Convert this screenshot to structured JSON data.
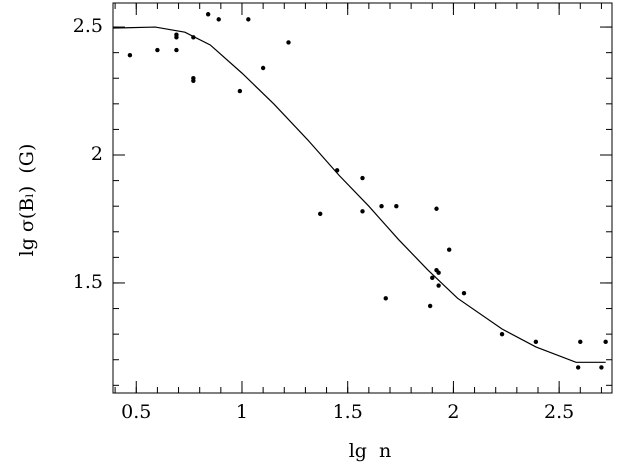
{
  "chart_data": {
    "type": "scatter",
    "x_label": "lg  n",
    "y_label": "lg σ(Bₗ)  (G)",
    "xlim": [
      0.39,
      2.75
    ],
    "ylim": [
      1.07,
      2.594
    ],
    "xticks": [
      0.5,
      1,
      1.5,
      2,
      2.5
    ],
    "yticks": [
      1.5,
      2,
      2.5
    ],
    "minor_divisions": 5,
    "color": "#000",
    "x": [
      0.47,
      0.6,
      0.69,
      0.69,
      0.69,
      0.77,
      0.77,
      0.77,
      0.84,
      0.89,
      0.99,
      1.03,
      1.1,
      1.22,
      1.37,
      1.45,
      1.57,
      1.57,
      1.66,
      1.68,
      1.73,
      1.89,
      1.9,
      1.92,
      1.92,
      1.93,
      1.93,
      1.98,
      2.05,
      2.23,
      2.39,
      2.59,
      2.6,
      2.7,
      2.72
    ],
    "y": [
      2.39,
      2.41,
      2.46,
      2.47,
      2.41,
      2.46,
      2.3,
      2.29,
      2.55,
      2.53,
      2.25,
      2.53,
      2.34,
      2.44,
      1.77,
      1.94,
      1.91,
      1.78,
      1.8,
      1.44,
      1.8,
      1.41,
      1.52,
      1.79,
      1.55,
      1.54,
      1.49,
      1.63,
      1.46,
      1.3,
      1.27,
      1.17,
      1.27,
      1.17,
      1.27
    ],
    "curve": {
      "x": [
        0.39,
        0.59,
        0.73,
        0.85,
        1.0,
        1.15,
        1.31,
        1.46,
        1.6,
        1.74,
        1.88,
        2.02,
        2.23,
        2.39,
        2.58,
        2.72
      ],
      "y": [
        2.496,
        2.5,
        2.48,
        2.43,
        2.32,
        2.2,
        2.06,
        1.92,
        1.8,
        1.67,
        1.55,
        1.44,
        1.32,
        1.25,
        1.19,
        1.19
      ]
    }
  }
}
